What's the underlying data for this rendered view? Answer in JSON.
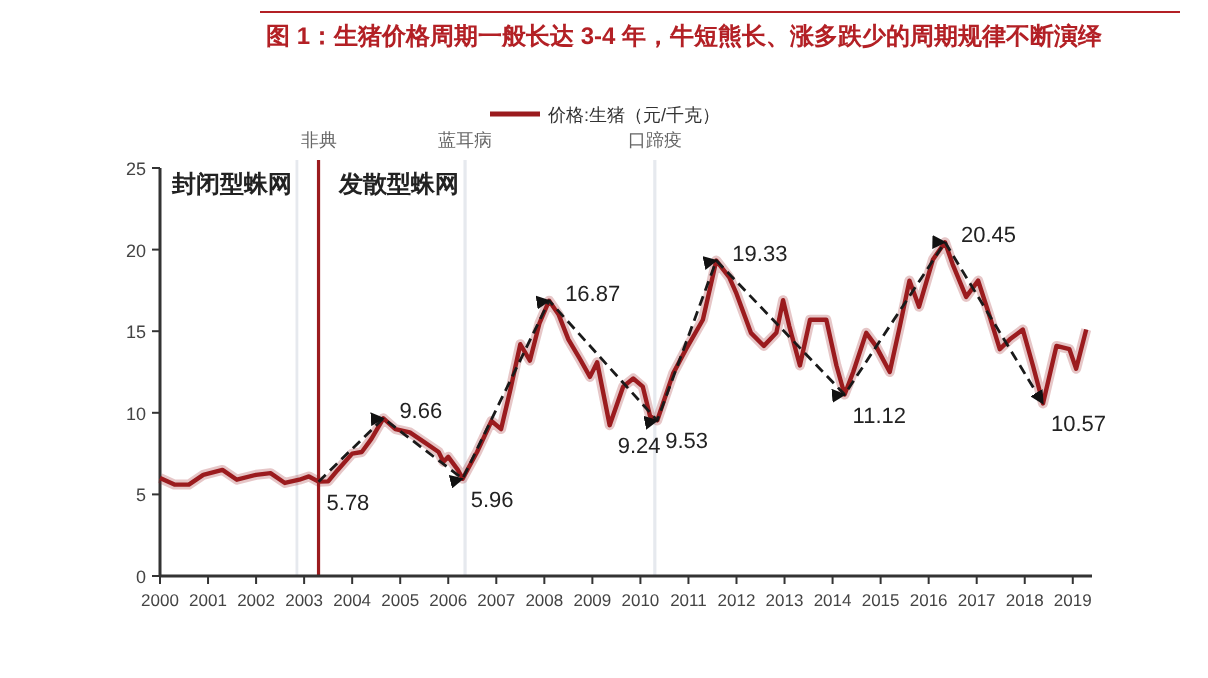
{
  "chart_data": {
    "type": "line",
    "title": "图 1：生猪价格周期一般长达 3-4 年，牛短熊长、涨多跌少的周期规律不断演绎",
    "xlim": [
      2000,
      2019.4
    ],
    "xticks": [
      2000,
      2001,
      2002,
      2003,
      2004,
      2005,
      2006,
      2007,
      2008,
      2009,
      2010,
      2011,
      2012,
      2013,
      2014,
      2015,
      2016,
      2017,
      2018,
      2019
    ],
    "ylim": [
      0,
      25
    ],
    "yticks": [
      0,
      5,
      10,
      15,
      20,
      25
    ],
    "grid": false,
    "legend": "top",
    "series": [
      {
        "name": "价格:生猪（元/千克）",
        "color": "#9b1b1e",
        "line_style": "solid",
        "x": [
          2000.0,
          2000.3,
          2000.6,
          2000.9,
          2001.3,
          2001.6,
          2002.0,
          2002.3,
          2002.6,
          2002.9,
          2003.1,
          2003.3,
          2003.5,
          2003.7,
          2004.0,
          2004.2,
          2004.4,
          2004.65,
          2004.9,
          2005.2,
          2005.5,
          2005.8,
          2005.9,
          2006.0,
          2006.2,
          2006.3,
          2006.6,
          2006.9,
          2007.1,
          2007.3,
          2007.5,
          2007.7,
          2007.9,
          2008.1,
          2008.3,
          2008.5,
          2008.74,
          2008.95,
          2009.1,
          2009.36,
          2009.64,
          2009.85,
          2010.05,
          2010.2,
          2010.35,
          2010.68,
          2010.95,
          2011.3,
          2011.58,
          2011.85,
          2012.0,
          2012.3,
          2012.57,
          2012.83,
          2012.97,
          2013.1,
          2013.32,
          2013.53,
          2013.87,
          2014.08,
          2014.25,
          2014.43,
          2014.7,
          2014.9,
          2015.19,
          2015.4,
          2015.6,
          2015.8,
          2016.09,
          2016.34,
          2016.5,
          2016.78,
          2017.03,
          2017.25,
          2017.48,
          2017.69,
          2017.96,
          2018.17,
          2018.38,
          2018.66,
          2018.93,
          2019.07,
          2019.28
        ],
        "values": [
          6.0,
          5.6,
          5.6,
          6.2,
          6.5,
          5.9,
          6.2,
          6.3,
          5.7,
          5.9,
          6.1,
          5.78,
          5.8,
          6.5,
          7.5,
          7.6,
          8.4,
          9.66,
          9.0,
          8.8,
          8.2,
          7.6,
          7.0,
          7.3,
          6.5,
          5.96,
          7.6,
          9.5,
          9.0,
          11.5,
          14.2,
          13.2,
          15.5,
          16.87,
          16.0,
          14.5,
          13.3,
          12.2,
          13.1,
          9.24,
          11.6,
          12.1,
          11.6,
          9.8,
          9.53,
          12.4,
          13.9,
          15.7,
          19.33,
          18.3,
          17.3,
          14.9,
          14.1,
          14.9,
          16.9,
          15.3,
          12.9,
          15.7,
          15.7,
          12.9,
          11.12,
          12.5,
          14.9,
          14.1,
          12.5,
          15.3,
          18.1,
          16.5,
          19.4,
          20.45,
          19.1,
          17.1,
          18.1,
          16.1,
          13.9,
          14.5,
          15.1,
          12.9,
          10.57,
          14.1,
          13.9,
          12.7,
          15.1
        ]
      },
      {
        "type": "line",
        "color": "#1a1a1a",
        "line_style": "dashed",
        "x": [
          2003.3,
          2004.65,
          2006.3,
          2008.1,
          2010.35,
          2011.58,
          2014.25,
          2016.34,
          2018.38
        ],
        "values": [
          5.78,
          9.66,
          5.96,
          16.87,
          9.53,
          19.33,
          11.12,
          20.45,
          10.57
        ]
      }
    ],
    "ref_lines": [
      {
        "axis": "x",
        "value": 2002.85,
        "color": "#e6e9ee"
      },
      {
        "axis": "x",
        "value": 2003.3,
        "label": "非典",
        "color": "#9b1b1e"
      },
      {
        "axis": "x",
        "value": 2006.35,
        "label": "蓝耳病",
        "color": "#e6e9ee"
      },
      {
        "axis": "x",
        "value": 2010.3,
        "label": "口蹄疫",
        "color": "#e6e9ee"
      }
    ],
    "annotations": [
      "封闭型蛛网",
      "发散型蛛网",
      {
        "text": "5.78",
        "x": 2003.3,
        "y": 5.78
      },
      {
        "text": "9.66",
        "x": 2004.65,
        "y": 9.66
      },
      {
        "text": "5.96",
        "x": 2006.3,
        "y": 5.96
      },
      {
        "text": "16.87",
        "x": 2008.1,
        "y": 16.87
      },
      {
        "text": "9.24",
        "x": 2009.36,
        "y": 9.24
      },
      {
        "text": "9.53",
        "x": 2010.35,
        "y": 9.53
      },
      {
        "text": "19.33",
        "x": 2011.58,
        "y": 19.33
      },
      {
        "text": "11.12",
        "x": 2014.25,
        "y": 11.12
      },
      {
        "text": "20.45",
        "x": 2016.34,
        "y": 20.45
      },
      {
        "text": "10.57",
        "x": 2018.38,
        "y": 10.57
      }
    ]
  }
}
